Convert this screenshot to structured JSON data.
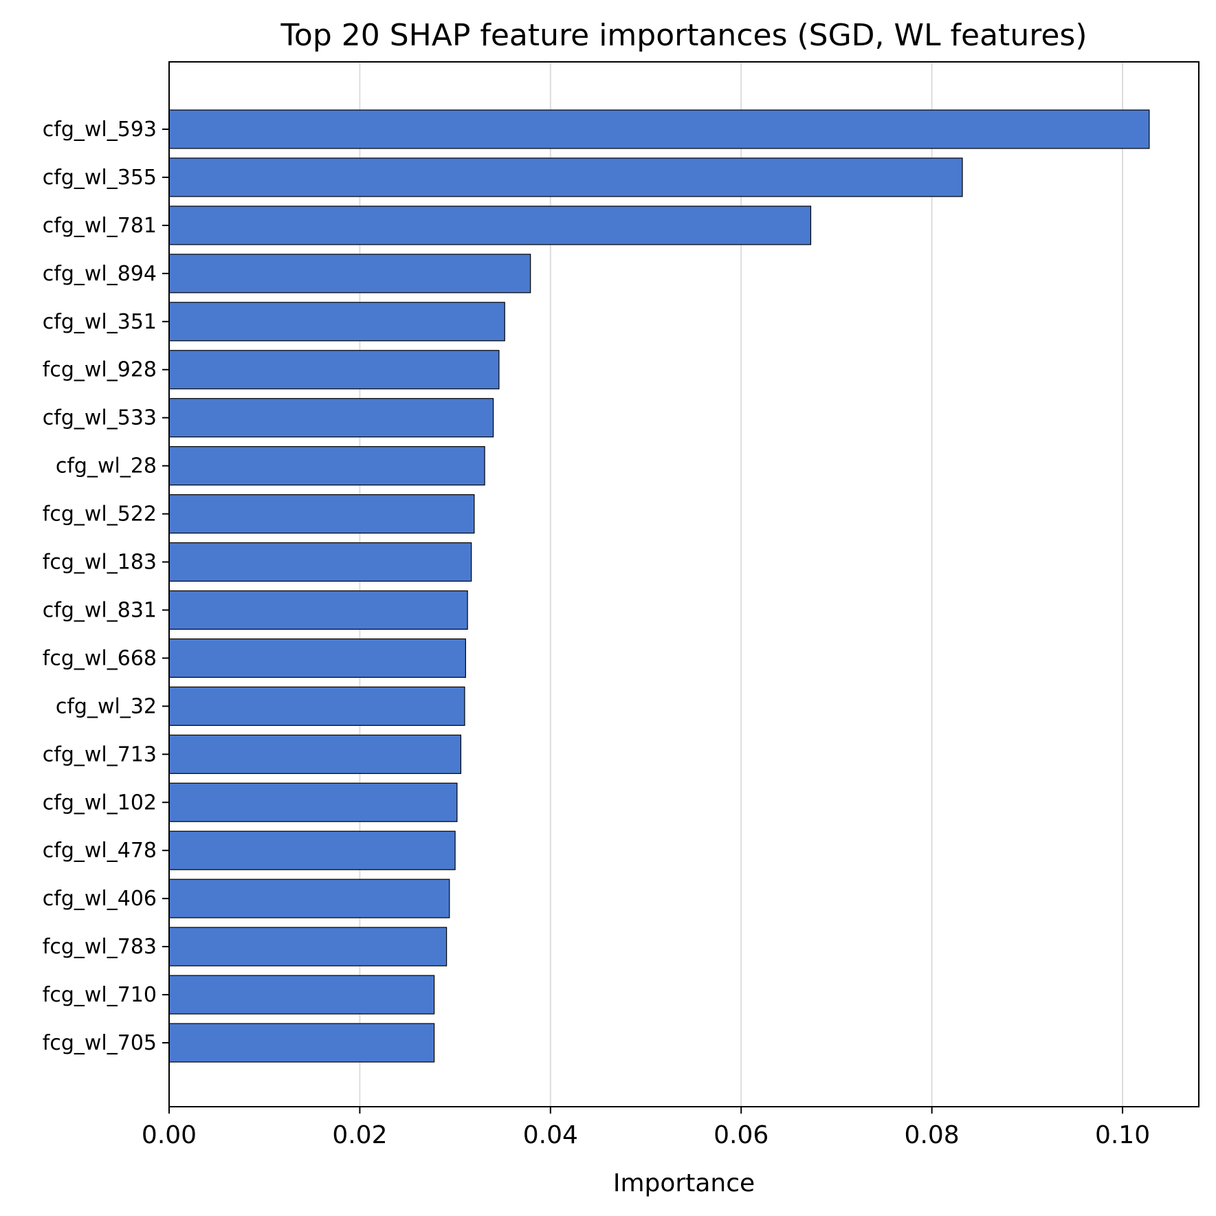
{
  "chart_data": {
    "type": "bar",
    "orientation": "horizontal",
    "title": "Top 20 SHAP feature importances (SGD, WL features)",
    "xlabel": "Importance",
    "ylabel": "",
    "xlim": [
      0,
      0.108
    ],
    "xticks": [
      0.0,
      0.02,
      0.04,
      0.06,
      0.08,
      0.1
    ],
    "xtick_labels": [
      "0.00",
      "0.02",
      "0.04",
      "0.06",
      "0.08",
      "0.10"
    ],
    "grid": "vertical",
    "bar_color": "#4a7acf",
    "bar_edge_color": "#000000",
    "grid_color": "#dddddd",
    "categories": [
      "cfg_wl_593",
      "cfg_wl_355",
      "cfg_wl_781",
      "cfg_wl_894",
      "cfg_wl_351",
      "fcg_wl_928",
      "cfg_wl_533",
      "cfg_wl_28",
      "fcg_wl_522",
      "fcg_wl_183",
      "cfg_wl_831",
      "fcg_wl_668",
      "cfg_wl_32",
      "cfg_wl_713",
      "cfg_wl_102",
      "cfg_wl_478",
      "cfg_wl_406",
      "fcg_wl_783",
      "fcg_wl_710",
      "fcg_wl_705"
    ],
    "values": [
      0.1028,
      0.0832,
      0.0673,
      0.0379,
      0.0352,
      0.0346,
      0.034,
      0.0331,
      0.032,
      0.0317,
      0.0313,
      0.0311,
      0.031,
      0.0306,
      0.0302,
      0.03,
      0.0294,
      0.0291,
      0.0278,
      0.0278
    ]
  }
}
